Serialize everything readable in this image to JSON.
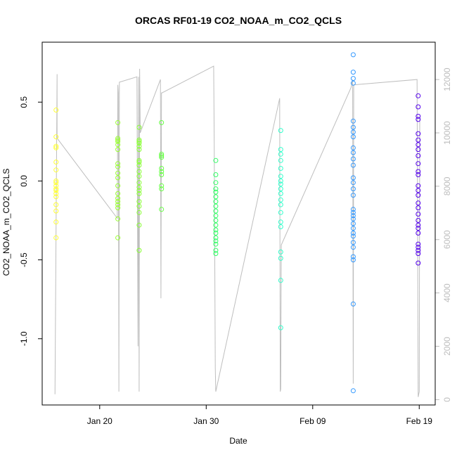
{
  "chart_data": {
    "type": "scatter",
    "title": "ORCAS RF01-19 CO2_NOAA_m_CO2_QCLS",
    "xlabel": "Date",
    "ylabel": "CO2_NOAA_m_CO2_QCLS",
    "x_ticks": [
      {
        "value": 20,
        "label": "Jan 20"
      },
      {
        "value": 30,
        "label": "Jan 30"
      },
      {
        "value": 40,
        "label": "Feb 09"
      },
      {
        "value": 50,
        "label": "Feb 19"
      }
    ],
    "xlim": [
      14.6,
      51.5
    ],
    "ylim": [
      -1.42,
      0.88
    ],
    "y_ticks": [
      {
        "value": -1.0,
        "label": "-1.0"
      },
      {
        "value": -0.5,
        "label": "-0.5"
      },
      {
        "value": 0.0,
        "label": "0.0"
      },
      {
        "value": 0.5,
        "label": "0.5"
      }
    ],
    "y2lim": [
      -200,
      13400
    ],
    "y2_ticks": [
      {
        "value": 0,
        "label": "0"
      },
      {
        "value": 2000,
        "label": "2000"
      },
      {
        "value": 4000,
        "label": "4000"
      },
      {
        "value": 6000,
        "label": "6000"
      },
      {
        "value": 8000,
        "label": "8000"
      },
      {
        "value": 10000,
        "label": "10000"
      },
      {
        "value": 12000,
        "label": "12000"
      }
    ],
    "series": [
      {
        "color": "#ffff33",
        "x": 15.9,
        "values": [
          0.45,
          0.28,
          0.22,
          0.21,
          0.12,
          0.07,
          0.0,
          -0.01,
          -0.03,
          -0.05,
          -0.06,
          -0.08,
          -0.1,
          -0.15,
          -0.19,
          -0.26,
          -0.36
        ]
      },
      {
        "color": "#99ff33",
        "x": 21.7,
        "values": [
          0.37,
          0.27,
          0.26,
          0.25,
          0.23,
          0.2,
          0.11,
          0.09,
          0.05,
          0.02,
          -0.03,
          -0.08,
          -0.11,
          -0.13,
          -0.15,
          -0.17,
          -0.24,
          -0.36
        ]
      },
      {
        "color": "#88ff33",
        "x": 23.7,
        "values": [
          0.34,
          0.26,
          0.25,
          0.24,
          0.22,
          0.2,
          0.13,
          0.12,
          0.1,
          0.06,
          0.03,
          -0.01,
          -0.04,
          -0.06,
          -0.08,
          -0.13,
          -0.16,
          -0.2,
          -0.28,
          -0.44
        ]
      },
      {
        "color": "#66ff44",
        "x": 25.8,
        "values": [
          0.37,
          0.17,
          0.16,
          0.15,
          0.08,
          0.06,
          0.04,
          -0.03,
          -0.05,
          -0.18
        ]
      },
      {
        "color": "#33ff66",
        "x": 30.9,
        "values": [
          0.13,
          0.04,
          -0.01,
          -0.05,
          -0.07,
          -0.1,
          -0.13,
          -0.16,
          -0.19,
          -0.22,
          -0.25,
          -0.28,
          -0.31,
          -0.33,
          -0.36,
          -0.38,
          -0.4,
          -0.44,
          -0.46
        ]
      },
      {
        "color": "#33ffcc",
        "x": 37.0,
        "values": [
          0.32,
          0.2,
          0.17,
          0.13,
          0.08,
          0.03,
          0.0,
          -0.02,
          -0.05,
          -0.08,
          -0.12,
          -0.15,
          -0.2,
          -0.26,
          -0.29,
          -0.45,
          -0.49,
          -0.63,
          -0.93
        ]
      },
      {
        "color": "#3399ff",
        "x": 43.8,
        "values": [
          0.8,
          0.69,
          0.65,
          0.62,
          0.38,
          0.34,
          0.31,
          0.28,
          0.21,
          0.18,
          0.14,
          0.1,
          0.02,
          -0.01,
          -0.05,
          -0.09,
          -0.18,
          -0.2,
          -0.22,
          -0.24,
          -0.27,
          -0.3,
          -0.33,
          -0.35,
          -0.39,
          -0.42,
          -0.48,
          -0.5,
          -0.78,
          -1.33
        ]
      },
      {
        "color": "#5500ee",
        "x": 49.9,
        "values": [
          0.54,
          0.47,
          0.41,
          0.39,
          0.3,
          0.26,
          0.23,
          0.2,
          0.16,
          0.11,
          0.06,
          0.04,
          -0.03,
          -0.06,
          -0.09,
          -0.14,
          -0.17,
          -0.21,
          -0.25,
          -0.28,
          -0.3,
          -0.33,
          -0.4,
          -0.42,
          -0.44,
          -0.46,
          -0.52
        ]
      }
    ],
    "altitude_series": {
      "color": "#bebebe",
      "x": [
        15.8,
        16.0,
        16.0,
        21.65,
        21.7,
        21.75,
        21.8,
        21.85,
        23.5,
        23.6,
        23.65,
        23.7,
        23.75,
        23.8,
        23.8,
        25.7,
        25.75,
        25.8,
        25.85,
        30.7,
        30.75,
        30.85,
        30.9,
        36.9,
        36.95,
        37.0,
        37.05,
        43.6,
        43.75,
        43.8,
        43.85,
        49.8,
        49.9,
        50.0,
        50.05
      ],
      "values": [
        200,
        12200,
        9800,
        6800,
        11800,
        11500,
        300,
        11900,
        12100,
        2000,
        12100,
        300,
        12400,
        10300,
        10000,
        12000,
        3800,
        11500,
        11500,
        12500,
        9600,
        1200,
        300,
        11300,
        300,
        400,
        5800,
        11700,
        12000,
        600,
        11800,
        12000,
        100,
        300,
        10600
      ]
    }
  }
}
